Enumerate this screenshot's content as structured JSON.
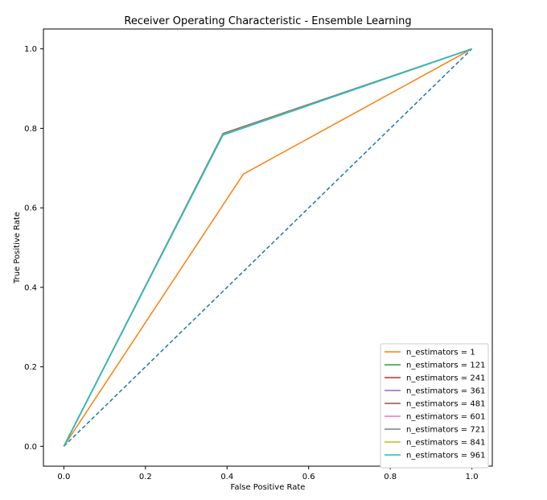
{
  "chart_data": {
    "type": "line",
    "title": "Receiver Operating Characteristic - Ensemble Learning",
    "xlabel": "False Positive Rate",
    "ylabel": "True Positive Rate",
    "xlim": [
      -0.05,
      1.05
    ],
    "ylim": [
      -0.05,
      1.05
    ],
    "xticks": [
      "0.0",
      "0.2",
      "0.4",
      "0.6",
      "0.8",
      "1.0"
    ],
    "yticks": [
      "0.0",
      "0.2",
      "0.4",
      "0.6",
      "0.8",
      "1.0"
    ],
    "grid": false,
    "legend_position": "lower-right",
    "series": [
      {
        "name": "n_estimators = 1",
        "color": "#ff7f0e",
        "x": [
          0,
          0.44,
          1
        ],
        "y": [
          0,
          0.685,
          1
        ]
      },
      {
        "name": "n_estimators = 121",
        "color": "#2ca02c",
        "x": [
          0,
          0.39,
          1
        ],
        "y": [
          0,
          0.785,
          1
        ]
      },
      {
        "name": "n_estimators = 241",
        "color": "#d62728",
        "x": [
          0,
          0.39,
          1
        ],
        "y": [
          0,
          0.786,
          1
        ]
      },
      {
        "name": "n_estimators = 361",
        "color": "#9467bd",
        "x": [
          0,
          0.39,
          1
        ],
        "y": [
          0,
          0.785,
          1
        ]
      },
      {
        "name": "n_estimators = 481",
        "color": "#8c564b",
        "x": [
          0,
          0.39,
          1
        ],
        "y": [
          0,
          0.787,
          1
        ]
      },
      {
        "name": "n_estimators = 601",
        "color": "#e377c2",
        "x": [
          0,
          0.39,
          1
        ],
        "y": [
          0,
          0.785,
          1
        ]
      },
      {
        "name": "n_estimators = 721",
        "color": "#7f7f7f",
        "x": [
          0,
          0.39,
          1
        ],
        "y": [
          0,
          0.785,
          1
        ]
      },
      {
        "name": "n_estimators = 841",
        "color": "#bcbd22",
        "x": [
          0,
          0.39,
          1
        ],
        "y": [
          0,
          0.784,
          1
        ]
      },
      {
        "name": "n_estimators = 961",
        "color": "#17becf",
        "x": [
          0,
          0.39,
          1
        ],
        "y": [
          0,
          0.783,
          1
        ]
      }
    ],
    "reference_line": {
      "color": "#1f77b4",
      "style": "dashed",
      "x": [
        0,
        1
      ],
      "y": [
        0,
        1
      ]
    }
  }
}
